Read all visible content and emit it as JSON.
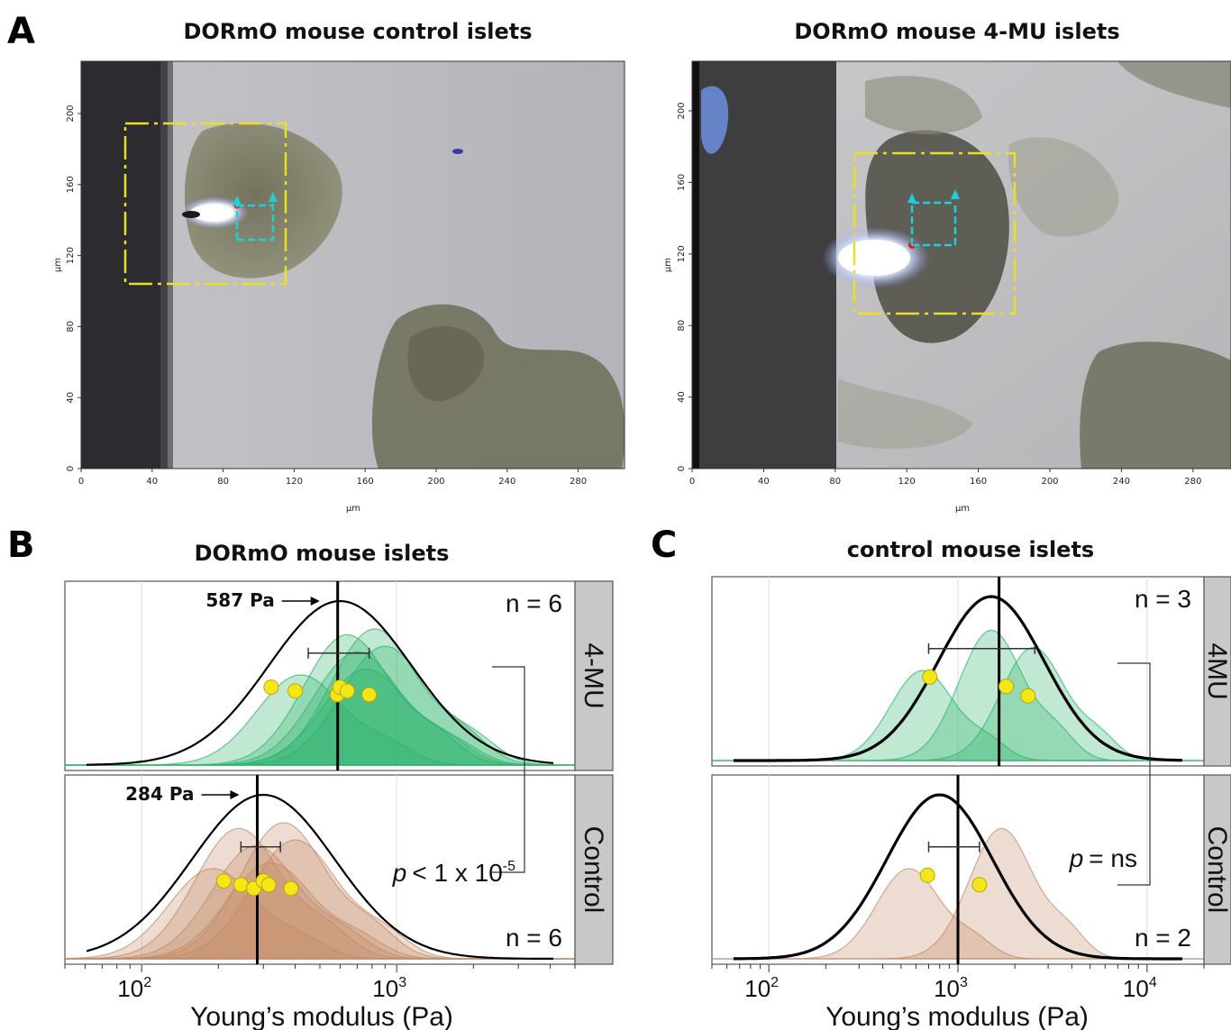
{
  "panel_a": {
    "letter": "A",
    "left_title": "DORmO mouse control islets",
    "right_title": "DORmO mouse 4-MU islets",
    "x_unit": "μm",
    "y_unit": "μm",
    "x_ticks": [
      "0",
      "40",
      "80",
      "120",
      "160",
      "200",
      "240",
      "280"
    ],
    "y_ticks": [
      "0",
      "40",
      "80",
      "120",
      "160",
      "200"
    ]
  },
  "chart_data": [
    {
      "type": "area",
      "panel": "B",
      "title": "DORmO mouse islets",
      "xlabel": "Young’s modulus (Pa)",
      "x_scale": "log",
      "xlim": [
        50,
        5000
      ],
      "x_ticks": [
        {
          "base": "10",
          "exp": "2"
        },
        {
          "base": "10",
          "exp": "3"
        }
      ],
      "facets": [
        {
          "label": "4-MU",
          "n_label": "n = 6",
          "color": "#2fb36e",
          "median": 587,
          "median_label": "587 Pa",
          "error_bar": [
            450,
            780
          ],
          "points": [
            322,
            400,
            585,
            600,
            640,
            780
          ],
          "overall_peak_Pa": 600,
          "replicate_peaks_Pa": [
            420,
            640,
            700,
            760,
            820,
            900
          ]
        },
        {
          "label": "Control",
          "n_label": "n = 6",
          "color": "#c28a66",
          "median": 284,
          "median_label": "284 Pa",
          "error_bar": [
            245,
            350
          ],
          "points": [
            210,
            245,
            275,
            300,
            315,
            385
          ],
          "overall_peak_Pa": 300,
          "replicate_peaks_Pa": [
            190,
            240,
            280,
            320,
            360,
            400
          ]
        }
      ],
      "stat": {
        "p_prefix": "p",
        "p_text": "< 1 x 10",
        "p_exp": "-5"
      }
    },
    {
      "type": "area",
      "panel": "C",
      "title": "control mouse islets",
      "xlabel": "Young’s modulus (Pa)",
      "x_scale": "log",
      "xlim": [
        50,
        20000
      ],
      "x_ticks": [
        {
          "base": "10",
          "exp": "2"
        },
        {
          "base": "10",
          "exp": "3"
        },
        {
          "base": "10",
          "exp": "4"
        }
      ],
      "facets": [
        {
          "label": "4MU",
          "n_label": "n = 3",
          "color": "#2fb36e",
          "median": 1650,
          "error_bar": [
            700,
            2550
          ],
          "points": [
            710,
            1800,
            2350
          ],
          "overall_peak_Pa": 1500,
          "replicate_peaks_Pa": [
            650,
            1500,
            2500
          ]
        },
        {
          "label": "Control",
          "n_label": "n = 2",
          "color": "#c28a66",
          "median": 1000,
          "error_bar": [
            700,
            1300
          ],
          "points": [
            690,
            1300
          ],
          "overall_peak_Pa": 800,
          "replicate_peaks_Pa": [
            550,
            1700
          ]
        }
      ],
      "stat": {
        "p_prefix": "p",
        "p_text": "= ns"
      }
    }
  ]
}
